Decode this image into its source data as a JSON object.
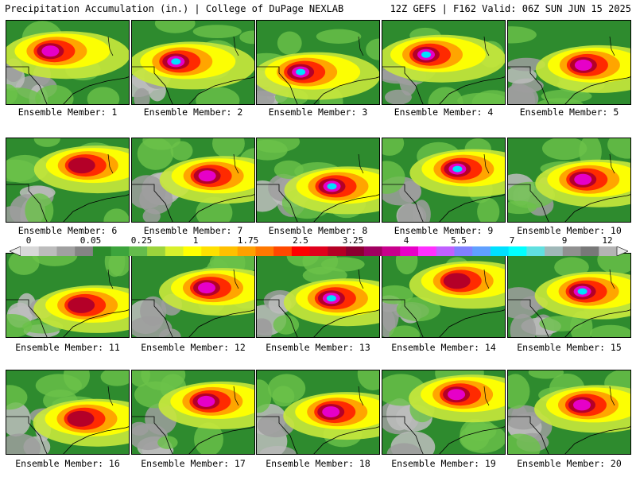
{
  "header": {
    "left_title": "Precipitation Accumulation (in.) | College of DuPage NEXLAB",
    "right_title": "12Z GEFS | F162 Valid: 06Z SUN JUN 15 2025"
  },
  "colorbar": {
    "tick_labels": [
      "0",
      "0.05",
      "0.25",
      "1",
      "1.75",
      "2.5",
      "3.25",
      "4",
      "5.5",
      "7",
      "9",
      "12"
    ],
    "colors": [
      "#d8d8d8",
      "#bcbcbc",
      "#a0a0a0",
      "#848484",
      "#2c8c2c",
      "#3ca43c",
      "#64bc4c",
      "#9cd43c",
      "#d8f02c",
      "#ffff00",
      "#ffe000",
      "#ffc000",
      "#ffa000",
      "#ff7800",
      "#ff4800",
      "#ff0000",
      "#e0001c",
      "#b40024",
      "#8c0030",
      "#a00060",
      "#c8008c",
      "#e800c8",
      "#ff30ff",
      "#c060ff",
      "#8080ff",
      "#60a0ff",
      "#00e0ff",
      "#00ffff",
      "#60e0e0",
      "#a0b8b8",
      "#909090",
      "#787878",
      "#b4b4b4"
    ]
  },
  "members": [
    {
      "label": "Ensemble Member: 1",
      "peak": 2
    },
    {
      "label": "Ensemble Member: 2",
      "peak": 3
    },
    {
      "label": "Ensemble Member: 3",
      "peak": 3
    },
    {
      "label": "Ensemble Member: 4",
      "peak": 3
    },
    {
      "label": "Ensemble Member: 5",
      "peak": 2
    },
    {
      "label": "Ensemble Member: 6",
      "peak": 1
    },
    {
      "label": "Ensemble Member: 7",
      "peak": 2
    },
    {
      "label": "Ensemble Member: 8",
      "peak": 3
    },
    {
      "label": "Ensemble Member: 9",
      "peak": 3
    },
    {
      "label": "Ensemble Member: 10",
      "peak": 2
    },
    {
      "label": "Ensemble Member: 11",
      "peak": 1
    },
    {
      "label": "Ensemble Member: 12",
      "peak": 2
    },
    {
      "label": "Ensemble Member: 13",
      "peak": 3
    },
    {
      "label": "Ensemble Member: 14",
      "peak": 1
    },
    {
      "label": "Ensemble Member: 15",
      "peak": 3
    },
    {
      "label": "Ensemble Member: 16",
      "peak": 1
    },
    {
      "label": "Ensemble Member: 17",
      "peak": 2
    },
    {
      "label": "Ensemble Member: 18",
      "peak": 2
    },
    {
      "label": "Ensemble Member: 19",
      "peak": 2
    },
    {
      "label": "Ensemble Member: 20",
      "peak": 2
    }
  ]
}
